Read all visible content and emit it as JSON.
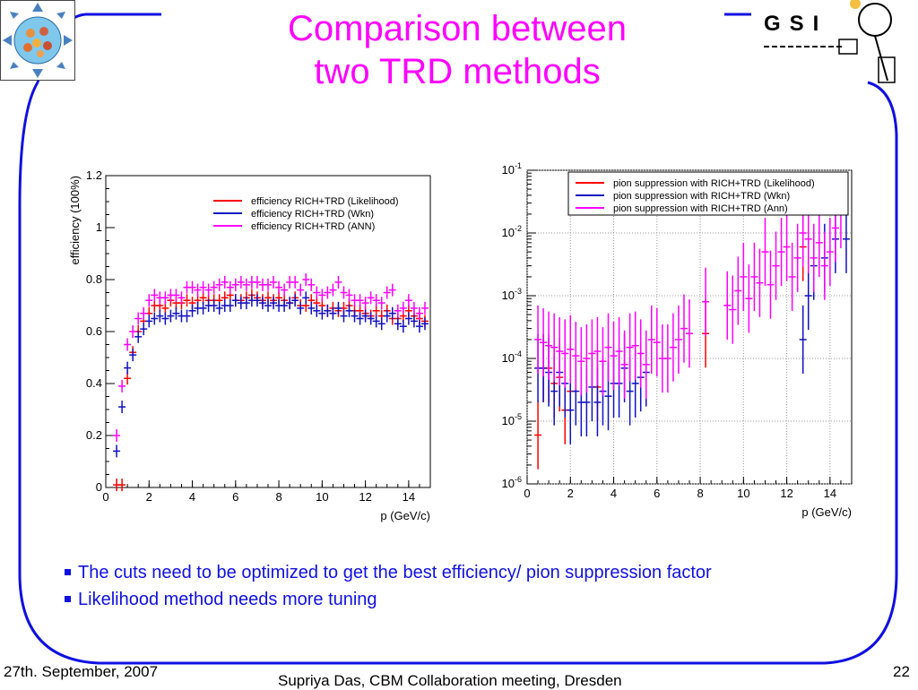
{
  "slide": {
    "title_line1": "Comparison between",
    "title_line2": "two TRD methods",
    "bullets": [
      "The cuts need to be optimized to get the best efficiency/ pion suppression factor",
      "Likelihood method needs more tuning"
    ],
    "footer_date": "27th. September, 2007",
    "footer_center": "Supriya Das, CBM Collaboration meeting, Dresden",
    "page_number": "22",
    "logo_text": "GSI",
    "colors": {
      "title": "#ff00ff",
      "frame": "#1010e0",
      "bullets": "#1010e0"
    }
  },
  "chart_data": [
    {
      "type": "scatter",
      "title": "",
      "xlabel": "p (GeV/c)",
      "ylabel": "efficiency (100%)",
      "xlim": [
        0,
        15
      ],
      "ylim": [
        0,
        1.2
      ],
      "xticks": [
        "0",
        "2",
        "4",
        "6",
        "8",
        "10",
        "12",
        "14"
      ],
      "yticks": [
        "0",
        "0.2",
        "0.4",
        "0.6",
        "0.8",
        "1",
        "1.2"
      ],
      "legend_position": "top-right",
      "grid": false,
      "series": [
        {
          "name": "efficiency RICH+TRD (Likelihood)",
          "color": "#ff0000",
          "x": [
            0.5,
            0.75,
            1,
            1.25,
            1.5,
            1.75,
            2,
            2.25,
            2.5,
            2.75,
            3,
            3.25,
            3.5,
            3.75,
            4,
            4.25,
            4.5,
            4.75,
            5,
            5.25,
            5.5,
            5.75,
            6,
            6.25,
            6.5,
            6.75,
            7,
            7.25,
            7.5,
            7.75,
            8,
            8.25,
            8.5,
            8.75,
            9,
            9.25,
            9.5,
            9.75,
            10,
            10.25,
            10.5,
            10.75,
            11,
            11.25,
            11.5,
            11.75,
            12,
            12.25,
            12.5,
            12.75,
            13,
            13.25,
            13.5,
            13.75,
            14,
            14.25,
            14.5,
            14.75
          ],
          "y": [
            0.01,
            0.01,
            0.42,
            0.52,
            0.6,
            0.64,
            0.67,
            0.7,
            0.7,
            0.69,
            0.72,
            0.71,
            0.71,
            0.72,
            0.71,
            0.72,
            0.73,
            0.72,
            0.72,
            0.72,
            0.73,
            0.74,
            0.72,
            0.72,
            0.73,
            0.74,
            0.73,
            0.72,
            0.73,
            0.72,
            0.73,
            0.72,
            0.71,
            0.73,
            0.7,
            0.7,
            0.72,
            0.71,
            0.7,
            0.68,
            0.69,
            0.68,
            0.69,
            0.7,
            0.68,
            0.68,
            0.67,
            0.66,
            0.68,
            0.66,
            0.68,
            0.65,
            0.65,
            0.66,
            0.68,
            0.66,
            0.65,
            0.64
          ]
        },
        {
          "name": "efficiency RICH+TRD (Wkn)",
          "color": "#1010c0",
          "x": [
            0.5,
            0.75,
            1,
            1.25,
            1.5,
            1.75,
            2,
            2.25,
            2.5,
            2.75,
            3,
            3.25,
            3.5,
            3.75,
            4,
            4.25,
            4.5,
            4.75,
            5,
            5.25,
            5.5,
            5.75,
            6,
            6.25,
            6.5,
            6.75,
            7,
            7.25,
            7.5,
            7.75,
            8,
            8.25,
            8.5,
            8.75,
            9,
            9.25,
            9.5,
            9.75,
            10,
            10.25,
            10.5,
            10.75,
            11,
            11.25,
            11.5,
            11.75,
            12,
            12.25,
            12.5,
            12.75,
            13,
            13.25,
            13.5,
            13.75,
            14,
            14.25,
            14.5,
            14.75
          ],
          "y": [
            0.14,
            0.31,
            0.46,
            0.51,
            0.58,
            0.61,
            0.64,
            0.65,
            0.66,
            0.65,
            0.66,
            0.67,
            0.66,
            0.66,
            0.68,
            0.69,
            0.69,
            0.7,
            0.7,
            0.69,
            0.7,
            0.7,
            0.72,
            0.71,
            0.71,
            0.72,
            0.72,
            0.71,
            0.7,
            0.71,
            0.7,
            0.7,
            0.71,
            0.72,
            0.69,
            0.73,
            0.69,
            0.68,
            0.67,
            0.68,
            0.67,
            0.69,
            0.66,
            0.68,
            0.66,
            0.65,
            0.66,
            0.65,
            0.64,
            0.63,
            0.66,
            0.67,
            0.63,
            0.62,
            0.65,
            0.64,
            0.62,
            0.63
          ]
        },
        {
          "name": "efficiency RICH+TRD (ANN)",
          "color": "#ff00ff",
          "x": [
            0.5,
            0.75,
            1,
            1.25,
            1.5,
            1.75,
            2,
            2.25,
            2.5,
            2.75,
            3,
            3.25,
            3.5,
            3.75,
            4,
            4.25,
            4.5,
            4.75,
            5,
            5.25,
            5.5,
            5.75,
            6,
            6.25,
            6.5,
            6.75,
            7,
            7.25,
            7.5,
            7.75,
            8,
            8.25,
            8.5,
            8.75,
            9,
            9.25,
            9.5,
            9.75,
            10,
            10.25,
            10.5,
            10.75,
            11,
            11.25,
            11.5,
            11.75,
            12,
            12.25,
            12.5,
            12.75,
            13,
            13.25,
            13.5,
            13.75,
            14,
            14.25,
            14.5,
            14.75
          ],
          "y": [
            0.2,
            0.39,
            0.55,
            0.6,
            0.65,
            0.67,
            0.72,
            0.74,
            0.73,
            0.73,
            0.74,
            0.74,
            0.73,
            0.77,
            0.77,
            0.76,
            0.77,
            0.76,
            0.77,
            0.78,
            0.79,
            0.77,
            0.78,
            0.79,
            0.78,
            0.79,
            0.79,
            0.78,
            0.78,
            0.79,
            0.77,
            0.76,
            0.79,
            0.79,
            0.76,
            0.8,
            0.78,
            0.75,
            0.74,
            0.75,
            0.76,
            0.79,
            0.75,
            0.74,
            0.72,
            0.72,
            0.71,
            0.73,
            0.72,
            0.71,
            0.75,
            0.76,
            0.68,
            0.69,
            0.72,
            0.69,
            0.67,
            0.69
          ]
        }
      ]
    },
    {
      "type": "scatter",
      "title": "",
      "xlabel": "p (GeV/c)",
      "ylabel": "",
      "xlim": [
        0,
        15
      ],
      "ylim": [
        1e-06,
        0.1
      ],
      "yscale": "log",
      "xticks": [
        "0",
        "2",
        "4",
        "6",
        "8",
        "10",
        "12",
        "14"
      ],
      "yticks": [
        "10-6",
        "10-5",
        "10-4",
        "10-3",
        "10-2",
        "10-1"
      ],
      "legend_position": "top-right",
      "grid": true,
      "series": [
        {
          "name": "pion suppression with RICH+TRD (Likelihood)",
          "color": "#ff0000",
          "x": [
            0.5,
            0.75,
            1,
            1.25,
            1.5,
            1.75,
            2,
            3.25,
            8.25,
            12.75
          ],
          "y": [
            6e-06,
            7e-05,
            7e-05,
            4e-05,
            5e-05,
            1.5e-05,
            3e-05,
            3.5e-05,
            0.00025,
            0.006
          ]
        },
        {
          "name": "pion suppression with RICH+TRD (Wkn)",
          "color": "#1010c0",
          "x": [
            0.5,
            0.75,
            1,
            1.25,
            1.5,
            1.75,
            2,
            2.25,
            2.5,
            2.75,
            3,
            3.25,
            3.5,
            3.75,
            4,
            4.25,
            4.5,
            4.75,
            5,
            5.25,
            5.5,
            12.75,
            13,
            13.25,
            13.75,
            14.25,
            14.75
          ],
          "y": [
            7e-05,
            7e-05,
            6e-05,
            3e-05,
            6e-05,
            4e-05,
            1.5e-05,
            3e-05,
            2e-05,
            2e-05,
            3.5e-05,
            2e-05,
            3e-05,
            2.5e-05,
            4e-05,
            4e-05,
            7e-05,
            3e-05,
            4e-05,
            5e-05,
            6e-05,
            0.0002,
            0.001,
            0.003,
            0.004,
            0.008,
            0.008
          ]
        },
        {
          "name": "pion suppression with RICH+TRD (Ann)",
          "color": "#ff00ff",
          "x": [
            0.5,
            0.75,
            1,
            1.25,
            1.5,
            1.75,
            2,
            2.25,
            2.5,
            2.75,
            3,
            3.25,
            3.5,
            3.75,
            4,
            4.25,
            4.5,
            4.75,
            5,
            5.25,
            5.5,
            5.75,
            6,
            6.25,
            6.5,
            6.75,
            7,
            7.25,
            7.5,
            8.25,
            9.25,
            9.5,
            9.75,
            10,
            10.25,
            10.5,
            10.75,
            11,
            11.25,
            11.5,
            11.75,
            12,
            12.25,
            12.5,
            12.75,
            13,
            13.25,
            13.5,
            13.75,
            14,
            14.25,
            14.5
          ],
          "y": [
            0.0002,
            0.00018,
            0.00016,
            0.00015,
            0.00013,
            0.00012,
            0.00014,
            0.00011,
            9e-05,
            0.0001,
            0.00012,
            0.00013,
            9e-05,
            0.00015,
            0.00011,
            0.00013,
            8e-05,
            0.00015,
            0.00016,
            0.00012,
            8e-05,
            0.0002,
            0.00018,
            0.0001,
            0.0001,
            0.00015,
            0.0002,
            0.0003,
            0.00025,
            0.0008,
            0.0007,
            0.0006,
            0.0012,
            0.002,
            0.0009,
            0.002,
            0.0016,
            0.005,
            0.0015,
            0.003,
            0.005,
            0.006,
            0.002,
            0.004,
            0.01,
            0.008,
            0.004,
            0.007,
            0.003,
            0.005,
            0.012,
            0.02
          ]
        }
      ]
    }
  ]
}
